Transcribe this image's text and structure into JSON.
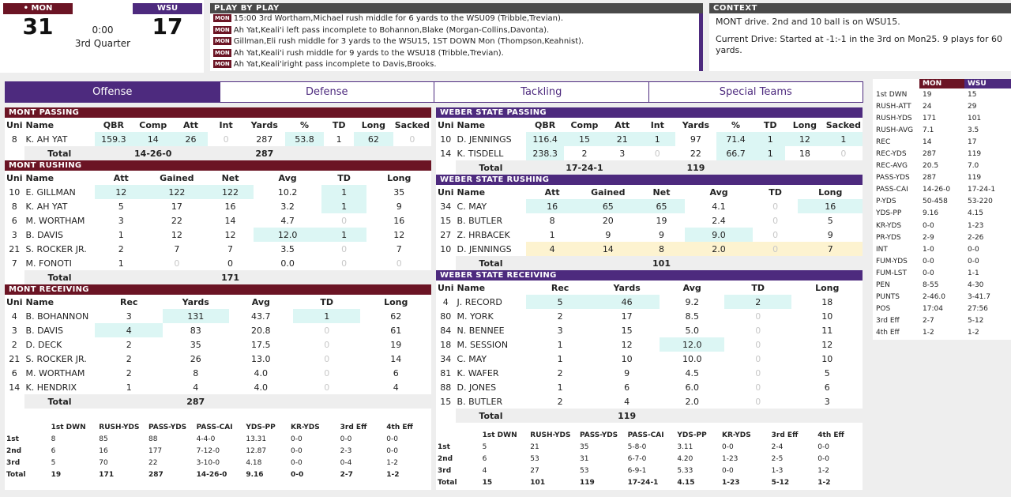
{
  "score": {
    "home_abbr": "• MON",
    "home_score": "31",
    "away_abbr": "WSU",
    "away_score": "17",
    "clock": "0:00",
    "period": "3rd Quarter"
  },
  "pbp": {
    "title": "PLAY BY PLAY",
    "tag": "MON",
    "plays": [
      "15:00 3rd Wortham,Michael rush middle for 6 yards to the WSU09 (Tribble,Trevian).",
      "Ah Yat,Keali'i left pass incomplete to Bohannon,Blake (Morgan-Collins,Davonta).",
      "Gillman,Eli rush middle for 3 yards to the WSU15, 1ST DOWN Mon (Thompson,Keahnist).",
      "Ah Yat,Keali'i rush middle for 9 yards to the WSU18 (Tribble,Trevian).",
      "Ah Yat,Keali'iright pass incomplete to Davis,Brooks."
    ]
  },
  "context": {
    "title": "CONTEXT",
    "line1": "MONT drive. 2nd and 10 ball is on WSU15.",
    "line2": "Current Drive: Started at -1:-1 in the 3rd on Mon25. 9 plays for 60 yards."
  },
  "tabs": [
    "Offense",
    "Defense",
    "Tackling",
    "Special Teams"
  ],
  "mont": {
    "passing": {
      "title": "MONT PASSING",
      "headers": [
        "Uni",
        "Name",
        "QBR",
        "Comp",
        "Att",
        "Int",
        "Yards",
        "%",
        "TD",
        "Long",
        "Sacked"
      ],
      "rows": [
        [
          "8",
          "K. AH YAT",
          "159.3",
          "14",
          "26",
          "0",
          "287",
          "53.8",
          "1",
          "62",
          "0"
        ]
      ],
      "total": [
        "Total",
        "14-26-0",
        "287"
      ]
    },
    "rushing": {
      "title": "MONT RUSHING",
      "headers": [
        "Uni",
        "Name",
        "Att",
        "Gained",
        "Net",
        "Avg",
        "TD",
        "Long"
      ],
      "rows": [
        [
          "10",
          "E. GILLMAN",
          "12",
          "122",
          "122",
          "10.2",
          "1",
          "35"
        ],
        [
          "8",
          "K. AH YAT",
          "5",
          "17",
          "16",
          "3.2",
          "1",
          "9"
        ],
        [
          "6",
          "M. WORTHAM",
          "3",
          "22",
          "14",
          "4.7",
          "0",
          "16"
        ],
        [
          "3",
          "B. DAVIS",
          "1",
          "12",
          "12",
          "12.0",
          "1",
          "12"
        ],
        [
          "21",
          "S. ROCKER JR.",
          "2",
          "7",
          "7",
          "3.5",
          "0",
          "7"
        ],
        [
          "7",
          "M. FONOTI",
          "1",
          "0",
          "0",
          "0.0",
          "0",
          "0"
        ]
      ],
      "total": [
        "Total",
        "171"
      ]
    },
    "receiving": {
      "title": "MONT RECEIVING",
      "headers": [
        "Uni",
        "Name",
        "Rec",
        "Yards",
        "Avg",
        "TD",
        "Long"
      ],
      "rows": [
        [
          "4",
          "B. BOHANNON",
          "3",
          "131",
          "43.7",
          "1",
          "62"
        ],
        [
          "3",
          "B. DAVIS",
          "4",
          "83",
          "20.8",
          "0",
          "61"
        ],
        [
          "2",
          "D. DECK",
          "2",
          "35",
          "17.5",
          "0",
          "19"
        ],
        [
          "21",
          "S. ROCKER JR.",
          "2",
          "26",
          "13.0",
          "0",
          "14"
        ],
        [
          "6",
          "M. WORTHAM",
          "2",
          "8",
          "4.0",
          "0",
          "6"
        ],
        [
          "14",
          "K. HENDRIX",
          "1",
          "4",
          "4.0",
          "0",
          "4"
        ]
      ],
      "total": [
        "Total",
        "287"
      ]
    },
    "summary": {
      "headers": [
        "",
        "1st DWN",
        "RUSH-YDS",
        "PASS-YDS",
        "PASS-CAI",
        "YDS-PP",
        "KR-YDS",
        "3rd Eff",
        "4th Eff"
      ],
      "rows": [
        [
          "1st",
          "8",
          "85",
          "88",
          "4-4-0",
          "13.31",
          "0-0",
          "0-0",
          "0-0"
        ],
        [
          "2nd",
          "6",
          "16",
          "177",
          "7-12-0",
          "12.87",
          "0-0",
          "2-3",
          "0-0"
        ],
        [
          "3rd",
          "5",
          "70",
          "22",
          "3-10-0",
          "4.18",
          "0-0",
          "0-4",
          "1-2"
        ],
        [
          "Total",
          "19",
          "171",
          "287",
          "14-26-0",
          "9.16",
          "0-0",
          "2-7",
          "1-2"
        ]
      ]
    }
  },
  "wsu": {
    "passing": {
      "title": "WEBER STATE PASSING",
      "headers": [
        "Uni",
        "Name",
        "QBR",
        "Comp",
        "Att",
        "Int",
        "Yards",
        "%",
        "TD",
        "Long",
        "Sacked"
      ],
      "rows": [
        [
          "10",
          "D. JENNINGS",
          "116.4",
          "15",
          "21",
          "1",
          "97",
          "71.4",
          "1",
          "12",
          "1"
        ],
        [
          "14",
          "K. TISDELL",
          "238.3",
          "2",
          "3",
          "0",
          "22",
          "66.7",
          "1",
          "18",
          "0"
        ]
      ],
      "total": [
        "Total",
        "17-24-1",
        "119"
      ]
    },
    "rushing": {
      "title": "WEBER STATE RUSHING",
      "headers": [
        "Uni",
        "Name",
        "Att",
        "Gained",
        "Net",
        "Avg",
        "TD",
        "Long"
      ],
      "rows": [
        [
          "34",
          "C. MAY",
          "16",
          "65",
          "65",
          "4.1",
          "0",
          "16"
        ],
        [
          "15",
          "B. BUTLER",
          "8",
          "20",
          "19",
          "2.4",
          "0",
          "5"
        ],
        [
          "27",
          "Z. HRBACEK",
          "1",
          "9",
          "9",
          "9.0",
          "0",
          "9"
        ],
        [
          "10",
          "D. JENNINGS",
          "4",
          "14",
          "8",
          "2.0",
          "0",
          "7"
        ]
      ],
      "total": [
        "Total",
        "101"
      ]
    },
    "receiving": {
      "title": "WEBER STATE RECEIVING",
      "headers": [
        "Uni",
        "Name",
        "Rec",
        "Yards",
        "Avg",
        "TD",
        "Long"
      ],
      "rows": [
        [
          "4",
          "J. RECORD",
          "5",
          "46",
          "9.2",
          "2",
          "18"
        ],
        [
          "80",
          "M. YORK",
          "2",
          "17",
          "8.5",
          "0",
          "10"
        ],
        [
          "84",
          "N. BENNEE",
          "3",
          "15",
          "5.0",
          "0",
          "11"
        ],
        [
          "18",
          "M. SESSION",
          "1",
          "12",
          "12.0",
          "0",
          "12"
        ],
        [
          "34",
          "C. MAY",
          "1",
          "10",
          "10.0",
          "0",
          "10"
        ],
        [
          "81",
          "K. WAFER",
          "2",
          "9",
          "4.5",
          "0",
          "5"
        ],
        [
          "88",
          "D. JONES",
          "1",
          "6",
          "6.0",
          "0",
          "6"
        ],
        [
          "15",
          "B. BUTLER",
          "2",
          "4",
          "2.0",
          "0",
          "3"
        ]
      ],
      "total": [
        "Total",
        "119"
      ]
    },
    "summary": {
      "headers": [
        "",
        "1st DWN",
        "RUSH-YDS",
        "PASS-YDS",
        "PASS-CAI",
        "YDS-PP",
        "KR-YDS",
        "3rd Eff",
        "4th Eff"
      ],
      "rows": [
        [
          "1st",
          "5",
          "21",
          "35",
          "5-8-0",
          "3.11",
          "0-0",
          "2-4",
          "0-0"
        ],
        [
          "2nd",
          "6",
          "53",
          "31",
          "6-7-0",
          "4.20",
          "1-23",
          "2-5",
          "0-0"
        ],
        [
          "3rd",
          "4",
          "27",
          "53",
          "6-9-1",
          "5.33",
          "0-0",
          "1-3",
          "1-2"
        ],
        [
          "Total",
          "15",
          "101",
          "119",
          "17-24-1",
          "4.15",
          "1-23",
          "5-12",
          "1-2"
        ]
      ]
    }
  },
  "team_stats": {
    "headers": [
      "",
      "MON",
      "WSU"
    ],
    "rows": [
      [
        "1st DWN",
        "19",
        "15"
      ],
      [
        "RUSH-ATT",
        "24",
        "29"
      ],
      [
        "RUSH-YDS",
        "171",
        "101"
      ],
      [
        "RUSH-AVG",
        "7.1",
        "3.5"
      ],
      [
        "REC",
        "14",
        "17"
      ],
      [
        "REC-YDS",
        "287",
        "119"
      ],
      [
        "REC-AVG",
        "20.5",
        "7.0"
      ],
      [
        "PASS-YDS",
        "287",
        "119"
      ],
      [
        "PASS-CAI",
        "14-26-0",
        "17-24-1"
      ],
      [
        "P-YDS",
        "50-458",
        "53-220"
      ],
      [
        "YDS-PP",
        "9.16",
        "4.15"
      ],
      [
        "KR-YDS",
        "0-0",
        "1-23"
      ],
      [
        "PR-YDS",
        "2-9",
        "2-26"
      ],
      [
        "INT",
        "1-0",
        "0-0"
      ],
      [
        "FUM-YDS",
        "0-0",
        "0-0"
      ],
      [
        "FUM-LST",
        "0-0",
        "1-1"
      ],
      [
        "PEN",
        "8-55",
        "4-30"
      ],
      [
        "PUNTS",
        "2-46.0",
        "3-41.7"
      ],
      [
        "POS",
        "17:04",
        "27:56"
      ],
      [
        "3rd Eff",
        "2-7",
        "5-12"
      ],
      [
        "4th Eff",
        "1-2",
        "1-2"
      ]
    ]
  },
  "colors": {
    "mon": "#6b1424",
    "wsu": "#4d2a7e",
    "highlight": "#dcf6f4",
    "highlight_alt": "#fdf3d0"
  }
}
